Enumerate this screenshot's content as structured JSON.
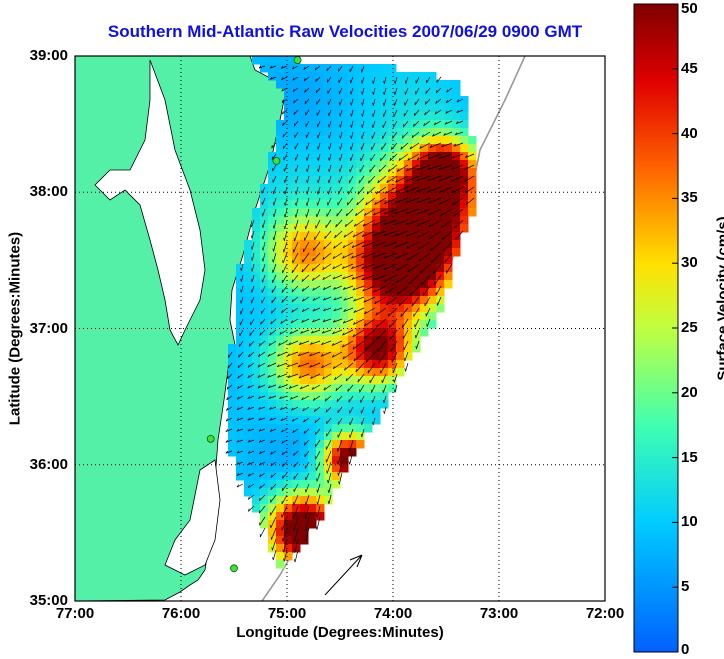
{
  "title": "Southern Mid-Atlantic Raw Velocities 2007/06/29 0900 GMT",
  "xaxis": {
    "label": "Longitude (Degrees:Minutes)",
    "ticks": [
      "77:00",
      "76:00",
      "75:00",
      "74:00",
      "73:00",
      "72:00"
    ],
    "range": [
      -77,
      -72
    ]
  },
  "yaxis": {
    "label": "Latitude (Degrees:Minutes)",
    "ticks": [
      "39:00",
      "38:00",
      "37:00",
      "36:00",
      "35:00"
    ],
    "range": [
      35,
      39
    ]
  },
  "colorbar": {
    "label": "Surface Velocity (cm/s)",
    "ticks": [
      "50",
      "45",
      "40",
      "35",
      "30",
      "25",
      "20",
      "15",
      "10",
      "5",
      "0"
    ],
    "range": [
      0,
      50
    ],
    "colormap": "jet"
  },
  "colors": {
    "land": "#55f0a8",
    "water": "#ffffff",
    "title": "#1010e0"
  },
  "stations": [
    {
      "lon": -74.9,
      "lat": 38.97
    },
    {
      "lon": -75.1,
      "lat": 38.23
    },
    {
      "lon": -75.72,
      "lat": 36.19
    },
    {
      "lon": -75.5,
      "lat": 35.24
    }
  ]
}
